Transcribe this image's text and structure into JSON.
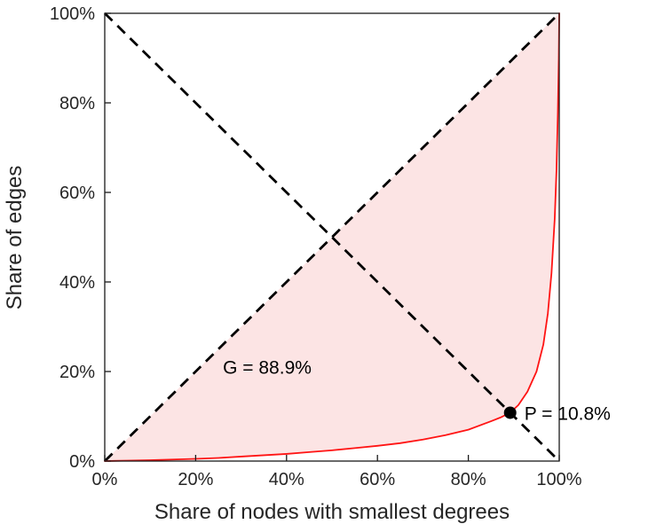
{
  "chart_data": {
    "type": "line",
    "title": "",
    "xlabel": "Share of nodes with smallest degrees",
    "ylabel": "Share of edges",
    "xlim": [
      0,
      100
    ],
    "ylim": [
      0,
      100
    ],
    "grid": false,
    "legend": "none",
    "xticks": {
      "values": [
        0,
        20,
        40,
        60,
        80,
        100
      ],
      "labels": [
        "0%",
        "20%",
        "40%",
        "60%",
        "80%",
        "100%"
      ]
    },
    "yticks": {
      "values": [
        0,
        20,
        40,
        60,
        80,
        100
      ],
      "labels": [
        "0%",
        "20%",
        "40%",
        "60%",
        "80%",
        "100%"
      ]
    },
    "fill": {
      "color": "#fce4e4"
    },
    "series": [
      {
        "name": "lorenz-curve",
        "type": "line",
        "color": "#ff1414",
        "x": [
          0,
          5,
          10,
          15,
          20,
          25,
          30,
          35,
          40,
          45,
          50,
          55,
          60,
          65,
          70,
          75,
          80,
          85,
          87,
          89.2,
          91,
          93,
          95,
          96.5,
          97.5,
          98.3,
          99,
          99.4,
          99.7,
          99.9,
          100
        ],
        "y": [
          0,
          0.1,
          0.2,
          0.35,
          0.5,
          0.7,
          1.0,
          1.3,
          1.6,
          2.0,
          2.4,
          2.9,
          3.4,
          4.0,
          4.8,
          5.8,
          7.0,
          8.9,
          9.7,
          10.8,
          12.5,
          15.5,
          20,
          26,
          33,
          42,
          54,
          65,
          78,
          90,
          100
        ]
      },
      {
        "name": "equality-diagonal-line",
        "type": "dashed",
        "color": "#000000",
        "x": [
          0,
          100
        ],
        "y": [
          0,
          100
        ]
      },
      {
        "name": "anti-diagonal-line",
        "type": "dashed",
        "color": "#000000",
        "x": [
          0,
          100
        ],
        "y": [
          100,
          0
        ]
      }
    ],
    "point": {
      "x": 89.2,
      "y": 10.8,
      "color": "#000000"
    },
    "annotations": {
      "gini": {
        "text": "G = 88.9%",
        "x": 26,
        "y": 19.5
      },
      "p": {
        "text": "P = 10.8%",
        "x": 89.2,
        "y": 10.8
      }
    }
  }
}
